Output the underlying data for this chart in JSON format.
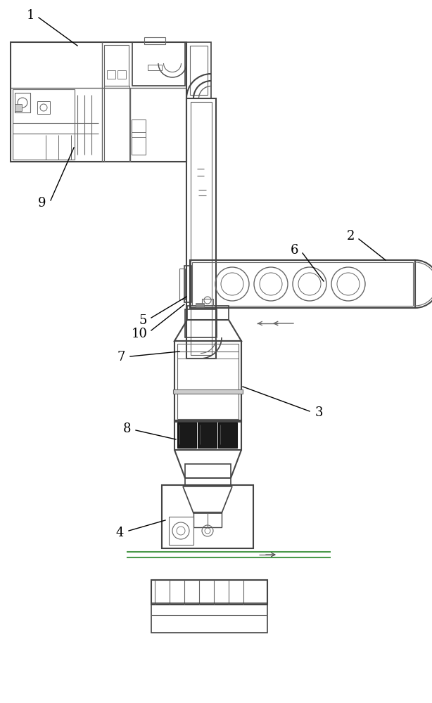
{
  "bg_color": "#ffffff",
  "lc": "#666666",
  "dk": "#444444",
  "blk": "#111111",
  "gr": "#4a9a4a",
  "figsize": [
    6.14,
    10.0
  ],
  "dpi": 100
}
